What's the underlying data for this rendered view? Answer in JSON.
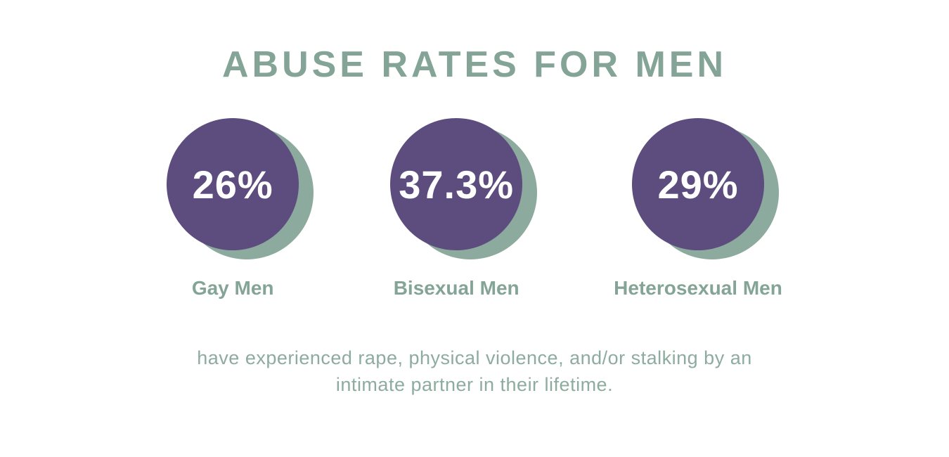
{
  "title": "ABUSE RATES FOR MEN",
  "stats": [
    {
      "value": "26%",
      "label": "Gay Men"
    },
    {
      "value": "37.3%",
      "label": "Bisexual Men"
    },
    {
      "value": "29%",
      "label": "Heterosexual Men"
    }
  ],
  "footnote": {
    "line1": "have experienced rape, physical violence, and/or stalking by an",
    "line2": "intimate partner in their lifetime."
  },
  "colors": {
    "background": "#ffffff",
    "circle_purple": "#5d4d7e",
    "circle_shadow_sage": "#8caa9d",
    "heading_sage": "#83a496",
    "footnote_sage": "#8dac9f",
    "stat_value_text": "#ffffff"
  },
  "chart_data": {
    "type": "pie",
    "variant": "stat-circles-infographic",
    "title": "ABUSE RATES FOR MEN",
    "categories": [
      "Gay Men",
      "Bisexual Men",
      "Heterosexual Men"
    ],
    "values": [
      26,
      37.3,
      29
    ],
    "unit": "%",
    "annotation": "have experienced rape, physical violence, and/or stalking by an intimate partner in their lifetime.",
    "legend_position": "below-each-circle",
    "grid": false
  }
}
